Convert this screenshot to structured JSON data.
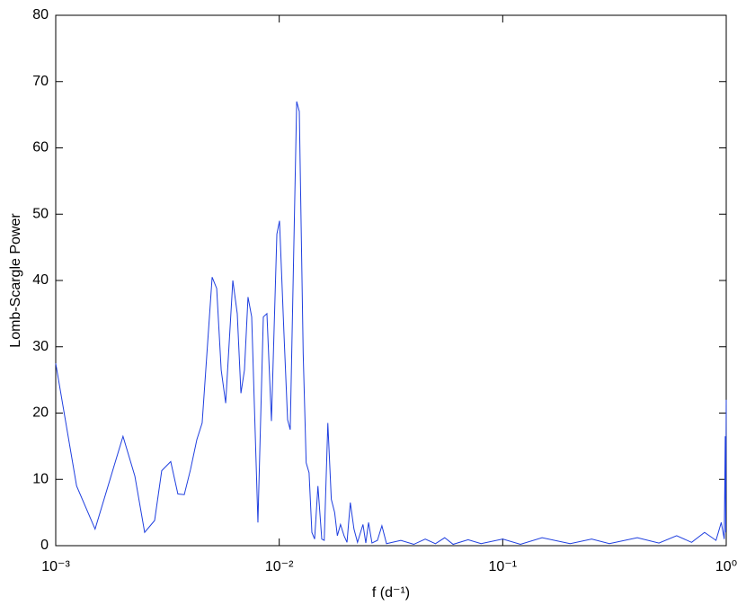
{
  "chart_data": {
    "type": "line",
    "xlabel": "f (d⁻¹)",
    "ylabel": "Lomb-Scargle Power",
    "xscale": "log",
    "xlim": [
      0.001,
      1
    ],
    "ylim": [
      0,
      80
    ],
    "xticks": [
      {
        "value": 0.001,
        "label": "10⁻³"
      },
      {
        "value": 0.01,
        "label": "10⁻²"
      },
      {
        "value": 0.1,
        "label": "10⁻¹"
      },
      {
        "value": 1,
        "label": "10⁰"
      }
    ],
    "yticks": [
      0,
      10,
      20,
      30,
      40,
      50,
      60,
      70,
      80
    ],
    "grid": false,
    "box": true,
    "x": [
      0.001,
      0.00124,
      0.0015,
      0.002,
      0.00226,
      0.0025,
      0.00277,
      0.00298,
      0.00327,
      0.00352,
      0.00376,
      0.00401,
      0.00428,
      0.00452,
      0.00501,
      0.00525,
      0.0055,
      0.00576,
      0.0062,
      0.00649,
      0.00674,
      0.00699,
      0.00725,
      0.00753,
      0.00803,
      0.00849,
      0.00881,
      0.00923,
      0.00976,
      0.01003,
      0.0105,
      0.0109,
      0.0112,
      0.01197,
      0.0123,
      0.0128,
      0.0132,
      0.0136,
      0.014,
      0.0144,
      0.0149,
      0.0155,
      0.0159,
      0.0165,
      0.0171,
      0.0177,
      0.0182,
      0.0188,
      0.0195,
      0.0201,
      0.0208,
      0.0216,
      0.0224,
      0.0237,
      0.0244,
      0.0251,
      0.026,
      0.0275,
      0.0288,
      0.0302,
      0.035,
      0.04,
      0.045,
      0.05,
      0.055,
      0.06,
      0.07,
      0.08,
      0.1,
      0.12,
      0.15,
      0.2,
      0.25,
      0.3,
      0.4,
      0.5,
      0.6,
      0.7,
      0.8,
      0.9,
      0.95,
      0.98,
      0.99,
      0.995,
      1
    ],
    "series": [
      {
        "name": "Lomb-Scargle Power",
        "color": "#1f3fdf",
        "values": [
          27.5,
          9,
          2.5,
          16.5,
          10.5,
          2,
          3.8,
          11.3,
          12.7,
          7.8,
          7.7,
          11.5,
          16,
          18.5,
          40.5,
          38.8,
          26.5,
          21.5,
          40,
          35,
          23,
          26.5,
          37.5,
          34.5,
          3.5,
          34.5,
          35,
          18.8,
          47,
          49,
          32,
          19,
          17.5,
          67,
          65.5,
          29,
          12.5,
          11,
          2,
          1,
          9,
          1,
          0.8,
          18.5,
          7,
          5,
          1.5,
          3.2,
          1.5,
          0.5,
          6.5,
          2.5,
          0.5,
          3.2,
          0.4,
          3.5,
          0.4,
          0.8,
          3,
          0.3,
          0.8,
          0.2,
          1,
          0.3,
          1.2,
          0.2,
          0.9,
          0.3,
          1,
          0.2,
          1.2,
          0.3,
          1,
          0.3,
          1.2,
          0.4,
          1.5,
          0.5,
          2,
          0.8,
          3.5,
          1,
          16.5,
          2,
          22
        ]
      }
    ]
  }
}
